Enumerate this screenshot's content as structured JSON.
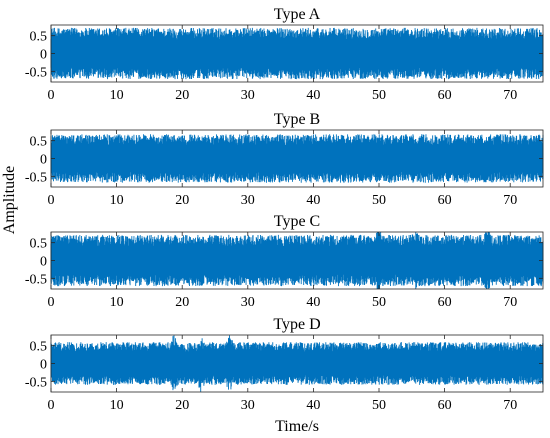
{
  "chart_data": {
    "type": "line",
    "xlabel": "Time/s",
    "ylabel": "Amplitude",
    "color": "#0072BD",
    "panels": [
      {
        "title": "Type A",
        "xlim": [
          0,
          75
        ],
        "ylim": [
          -0.8,
          0.8
        ],
        "xticks": [
          0,
          10,
          20,
          30,
          40,
          50,
          60,
          70
        ],
        "yticks": [
          -0.5,
          0,
          0.5
        ],
        "amplitude_range": [
          -0.72,
          0.72
        ],
        "bursts": []
      },
      {
        "title": "Type B",
        "xlim": [
          0,
          75
        ],
        "ylim": [
          -0.8,
          0.8
        ],
        "xticks": [
          0,
          10,
          20,
          30,
          40,
          50,
          60,
          70
        ],
        "yticks": [
          -0.5,
          0,
          0.5
        ],
        "amplitude_range": [
          -0.68,
          0.68
        ],
        "bursts": []
      },
      {
        "title": "Type C",
        "xlim": [
          0,
          75
        ],
        "ylim": [
          -0.8,
          0.8
        ],
        "xticks": [
          0,
          10,
          20,
          30,
          40,
          50,
          60,
          70
        ],
        "yticks": [
          -0.5,
          0,
          0.5
        ],
        "amplitude_range": [
          -0.72,
          0.72
        ],
        "bursts": [
          50,
          55.5,
          66.5
        ]
      },
      {
        "title": "Type D",
        "xlim": [
          0,
          75
        ],
        "ylim": [
          -0.8,
          0.8
        ],
        "xticks": [
          0,
          10,
          20,
          30,
          40,
          50,
          60,
          70
        ],
        "yticks": [
          -0.5,
          0,
          0.5
        ],
        "amplitude_range": [
          -0.6,
          0.6
        ],
        "bursts": [
          18.7,
          22.8,
          27.2
        ]
      }
    ]
  }
}
